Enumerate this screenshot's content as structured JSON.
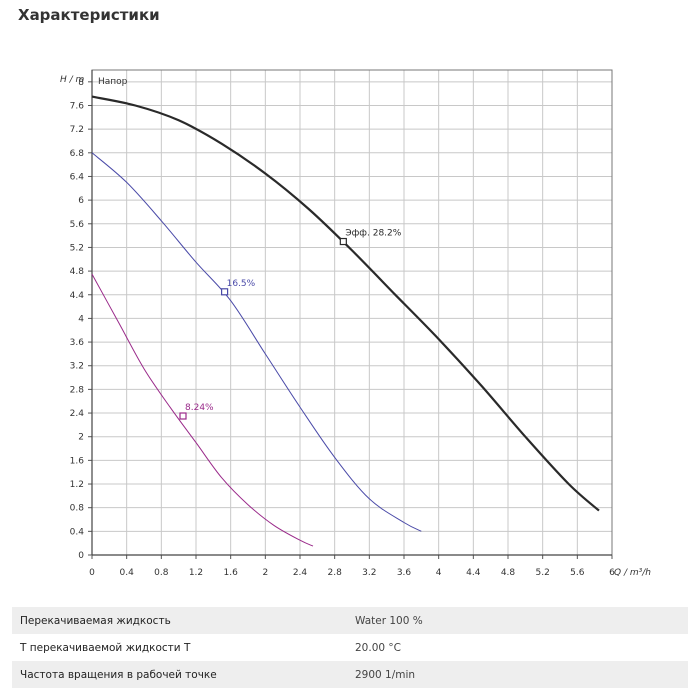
{
  "page": {
    "heading": "Характеристики"
  },
  "chart_data": {
    "type": "line",
    "y_axis_title": "H / m",
    "x_axis_title": "Q / m³/h",
    "corner_label": "Напор",
    "xlim": [
      0,
      6.0
    ],
    "ylim": [
      0,
      8.2
    ],
    "x_ticks": [
      "0",
      "0.4",
      "0.8",
      "1.2",
      "1.6",
      "2",
      "2.4",
      "2.8",
      "3.2",
      "3.6",
      "4",
      "4.4",
      "4.8",
      "5.2",
      "5.6",
      "6"
    ],
    "y_ticks": [
      "0",
      "0.4",
      "0.8",
      "1.2",
      "1.6",
      "2",
      "2.4",
      "2.8",
      "3.2",
      "3.6",
      "4",
      "4.4",
      "4.8",
      "5.2",
      "5.6",
      "6",
      "6.4",
      "6.8",
      "7.2",
      "7.6",
      "8"
    ],
    "grid": true,
    "colors": {
      "high": "#2a2a2a",
      "mid": "#4a4aa8",
      "low": "#9a2a8a",
      "grid": "#c8c8c8"
    },
    "series": [
      {
        "key": "high",
        "x": [
          0,
          0.5,
          1.0,
          1.5,
          2.0,
          2.5,
          3.0,
          3.5,
          4.0,
          4.5,
          5.0,
          5.5,
          5.85
        ],
        "y": [
          7.75,
          7.6,
          7.35,
          6.95,
          6.45,
          5.85,
          5.15,
          4.4,
          3.65,
          2.85,
          2.0,
          1.2,
          0.75
        ],
        "marker": {
          "x": 2.9,
          "y": 5.3,
          "label": "Эфф.  28.2%"
        }
      },
      {
        "key": "mid",
        "x": [
          0,
          0.4,
          0.8,
          1.2,
          1.6,
          2.0,
          2.4,
          2.8,
          3.2,
          3.6,
          3.8
        ],
        "y": [
          6.8,
          6.3,
          5.65,
          4.95,
          4.3,
          3.4,
          2.5,
          1.65,
          0.95,
          0.55,
          0.4
        ],
        "marker": {
          "x": 1.53,
          "y": 4.45,
          "label": "16.5%"
        }
      },
      {
        "key": "low",
        "x": [
          0,
          0.3,
          0.6,
          0.9,
          1.2,
          1.5,
          1.8,
          2.1,
          2.4,
          2.55
        ],
        "y": [
          4.75,
          3.95,
          3.15,
          2.5,
          1.9,
          1.3,
          0.85,
          0.5,
          0.25,
          0.15
        ],
        "marker": {
          "x": 1.05,
          "y": 2.35,
          "label": "8.24%"
        }
      }
    ]
  },
  "properties": [
    {
      "label": "Перекачиваемая жидкость",
      "value": "Water 100 %"
    },
    {
      "label": "Т перекачиваемой жидкости T",
      "value": "20.00 °C"
    },
    {
      "label": "Частота вращения в рабочей точке",
      "value": "2900 1/min"
    }
  ]
}
